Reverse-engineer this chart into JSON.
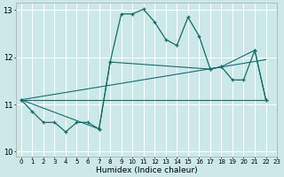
{
  "xlabel": "Humidex (Indice chaleur)",
  "bg_color": "#cce8e8",
  "grid_color": "#ffffff",
  "line_color": "#1a6b6b",
  "xlim": [
    -0.5,
    23
  ],
  "ylim": [
    9.9,
    13.15
  ],
  "yticks": [
    10,
    11,
    12,
    13
  ],
  "xticks": [
    0,
    1,
    2,
    3,
    4,
    5,
    6,
    7,
    8,
    9,
    10,
    11,
    12,
    13,
    14,
    15,
    16,
    17,
    18,
    19,
    20,
    21,
    22,
    23
  ],
  "series": [
    {
      "x": [
        0,
        1,
        2,
        3,
        4,
        5,
        6,
        7,
        8,
        9,
        10,
        11,
        12,
        13,
        14,
        15,
        16,
        17,
        18,
        19,
        20,
        21,
        22
      ],
      "y": [
        11.1,
        10.85,
        10.62,
        10.62,
        10.42,
        10.62,
        10.62,
        10.48,
        11.9,
        12.92,
        12.92,
        13.02,
        12.75,
        12.38,
        12.25,
        12.85,
        12.45,
        11.75,
        11.8,
        11.52,
        11.52,
        12.15,
        11.1
      ],
      "lw": 0.9,
      "marker": true
    },
    {
      "x": [
        0,
        7,
        8,
        17,
        18,
        21,
        22
      ],
      "y": [
        11.1,
        10.48,
        11.9,
        11.75,
        11.8,
        12.15,
        11.1
      ],
      "lw": 0.8,
      "marker": true
    },
    {
      "x": [
        0,
        22
      ],
      "y": [
        11.1,
        11.1
      ],
      "lw": 0.8,
      "marker": false
    },
    {
      "x": [
        0,
        22
      ],
      "y": [
        11.1,
        11.95
      ],
      "lw": 0.8,
      "marker": false
    }
  ]
}
